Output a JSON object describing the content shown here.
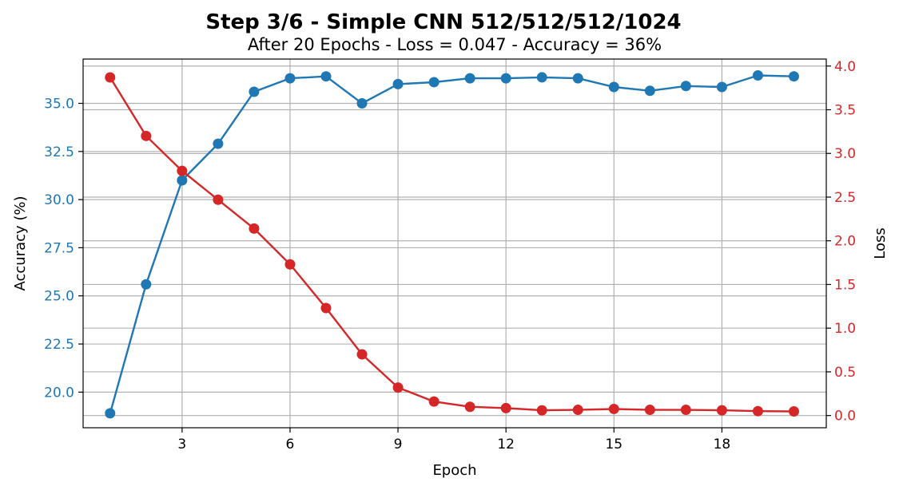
{
  "chart_data": {
    "type": "line",
    "title": "Step 3/6 - Simple CNN 512/512/512/1024",
    "subtitle": "After 20 Epochs - Loss = 0.047 - Accuracy = 36%",
    "xlabel": "Epoch",
    "ylabel_left": "Accuracy (%)",
    "ylabel_right": "Loss",
    "x": [
      1,
      2,
      3,
      4,
      5,
      6,
      7,
      8,
      9,
      10,
      11,
      12,
      13,
      14,
      15,
      16,
      17,
      18,
      19,
      20
    ],
    "x_ticks": [
      3,
      6,
      9,
      12,
      15,
      18
    ],
    "xlim": [
      0.25,
      20.9
    ],
    "series": [
      {
        "axis": "left",
        "color": "#1f77b4",
        "values": [
          18.9,
          25.6,
          31.0,
          32.9,
          35.6,
          36.3,
          36.4,
          35.0,
          36.0,
          36.1,
          36.3,
          36.3,
          36.35,
          36.3,
          35.85,
          35.65,
          35.9,
          35.85,
          36.45,
          36.4
        ]
      },
      {
        "axis": "right",
        "color": "#d62728",
        "values": [
          3.87,
          3.2,
          2.8,
          2.47,
          2.14,
          1.73,
          1.23,
          0.7,
          0.32,
          0.16,
          0.1,
          0.085,
          0.06,
          0.065,
          0.075,
          0.065,
          0.065,
          0.06,
          0.05,
          0.047
        ]
      }
    ],
    "y_left": {
      "ylim": [
        18.15,
        37.3
      ],
      "ticks": [
        "20.0",
        "22.5",
        "25.0",
        "27.5",
        "30.0",
        "32.5",
        "35.0"
      ],
      "tick_values": [
        20,
        22.5,
        25,
        27.5,
        30,
        32.5,
        35
      ],
      "color": "#1f77b4"
    },
    "y_right": {
      "ylim": [
        -0.14,
        4.08
      ],
      "ticks": [
        "0.0",
        "0.5",
        "1.0",
        "1.5",
        "2.0",
        "2.5",
        "3.0",
        "3.5",
        "4.0"
      ],
      "tick_values": [
        0,
        0.5,
        1,
        1.5,
        2,
        2.5,
        3,
        3.5,
        4
      ],
      "color": "#d62728"
    },
    "grid": true
  }
}
